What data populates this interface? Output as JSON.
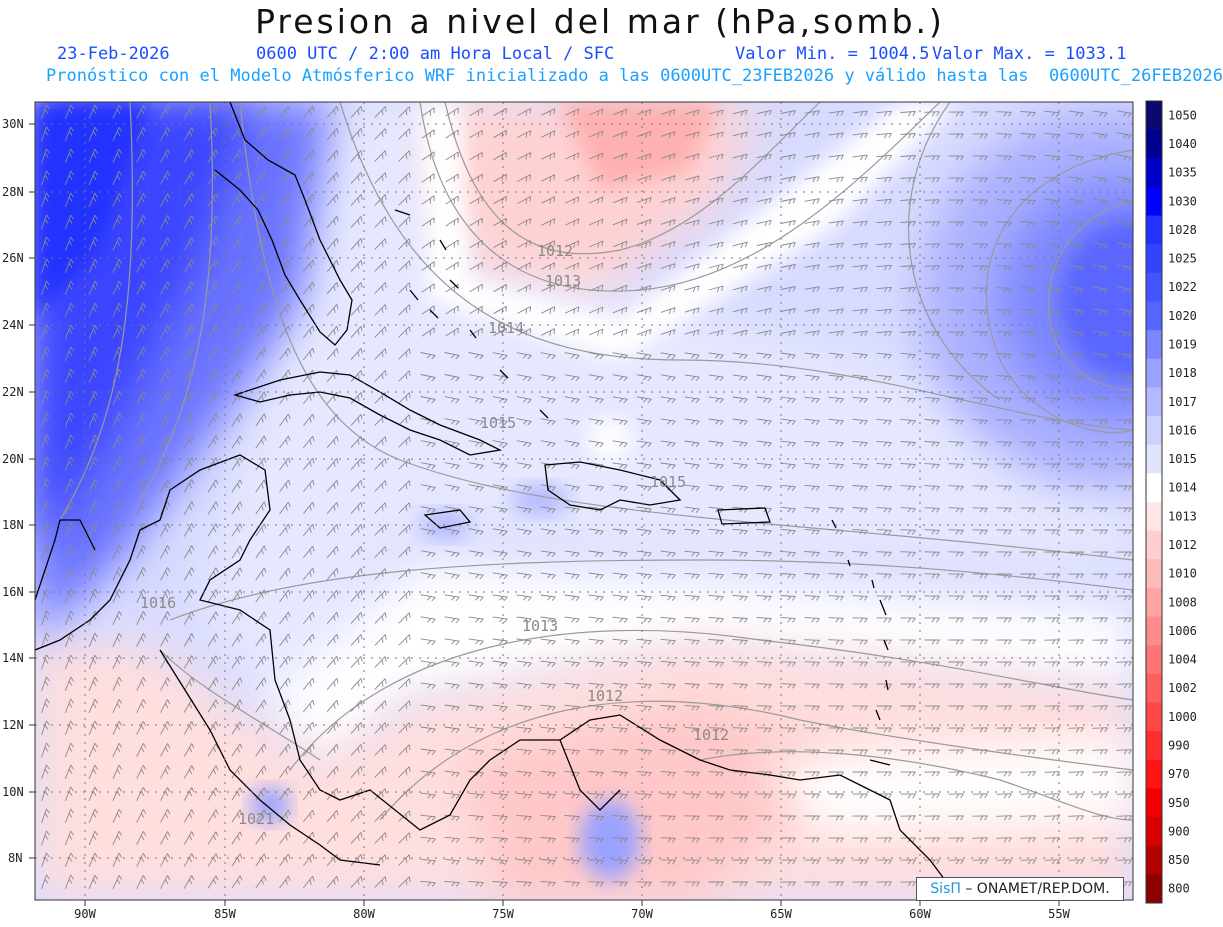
{
  "header": {
    "title": "Presion a nivel del mar (hPa,somb.)",
    "date": "23-Feb-2026",
    "time": "0600 UTC / 2:00 am Hora Local / SFC",
    "valmin": "Valor Min. = 1004.5",
    "valmax": "Valor Max. = 1033.1",
    "model_line": "Pronóstico con el Modelo Atmósferico WRF inicializado a las 0600UTC_23FEB2026 y válido hasta las  0600UTC_26FEB2026"
  },
  "map": {
    "lat_labels": [
      "30N",
      "28N",
      "26N",
      "24N",
      "22N",
      "20N",
      "18N",
      "16N",
      "14N",
      "12N",
      "10N",
      "8N"
    ],
    "lon_labels": [
      "90W",
      "85W",
      "80W",
      "75W",
      "70W",
      "65W",
      "60W",
      "55W"
    ],
    "contour_labels": [
      "1012",
      "1013",
      "1014",
      "1015",
      "1015",
      "1016",
      "1013",
      "1012",
      "1012",
      "1021"
    ]
  },
  "colorbar": {
    "levels": [
      "1050",
      "1040",
      "1035",
      "1030",
      "1028",
      "1025",
      "1022",
      "1020",
      "1019",
      "1018",
      "1017",
      "1016",
      "1015",
      "1014",
      "1013",
      "1012",
      "1010",
      "1008",
      "1006",
      "1004",
      "1002",
      "1000",
      "990",
      "970",
      "950",
      "900",
      "850",
      "800"
    ],
    "colors": [
      "#0a0a6e",
      "#00008f",
      "#0000c8",
      "#0000ff",
      "#2233ff",
      "#3344ff",
      "#4455ff",
      "#5566ff",
      "#7b86ff",
      "#9aa2ff",
      "#b4baff",
      "#cdd1ff",
      "#e1e4ff",
      "#ffffff",
      "#ffe6e6",
      "#ffcfcf",
      "#ffbaba",
      "#ffa3a3",
      "#ff8c8c",
      "#ff7575",
      "#ff5e5e",
      "#ff4747",
      "#ff2e2e",
      "#ff1414",
      "#f20000",
      "#d90000",
      "#b30000",
      "#8c0000"
    ]
  },
  "credit": {
    "brand": "SisΠ",
    "text": " – ONAMET/REP.DOM."
  }
}
